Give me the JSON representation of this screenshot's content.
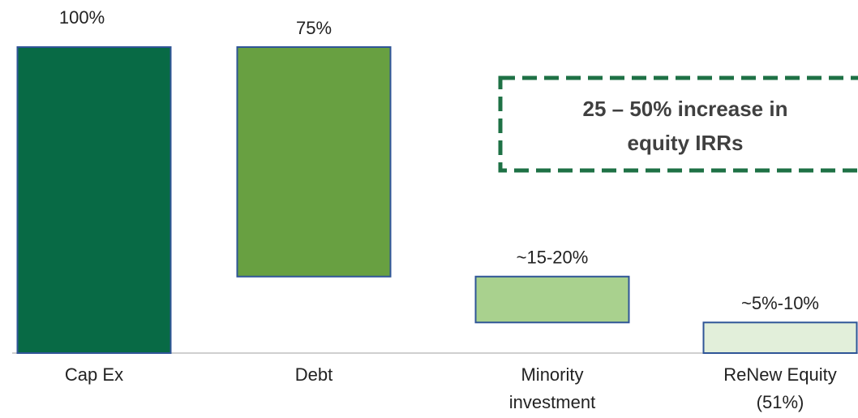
{
  "chart_data": {
    "type": "waterfall",
    "categories": [
      "Cap Ex",
      "Debt",
      "Minority investment",
      "ReNew Equity (51%)"
    ],
    "values": [
      100,
      75,
      15,
      10
    ],
    "value_labels": [
      "100%",
      "75%",
      "~15-20%",
      "~5%-10%"
    ],
    "colors": [
      "#086a45",
      "#68a041",
      "#a9d18e",
      "#e2efda"
    ],
    "ylim": [
      0,
      100
    ],
    "annotation": [
      "25 – 50% increase in",
      "equity IRRs"
    ]
  }
}
